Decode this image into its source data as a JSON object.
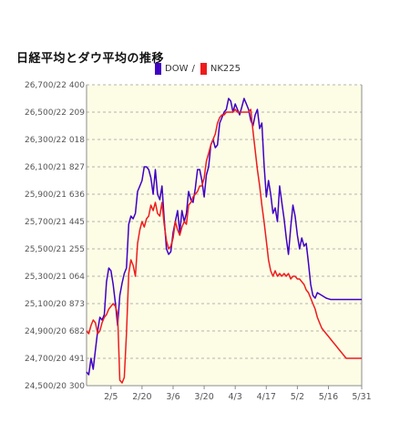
{
  "chart_data": {
    "type": "line",
    "title": "日経平均とダウ平均の推移",
    "y_tick_labels": [
      "24,500/20 300",
      "24,700/20 491",
      "24,900/20 682",
      "25,100/20 873",
      "25,300/21 064",
      "25,500/21 255",
      "25,700/21 445",
      "25,900/21 636",
      "26,100/21 827",
      "26,300/22 018",
      "26,500/22 209",
      "26,700/22 400"
    ],
    "x_tick_labels": [
      "2/5",
      "2/20",
      "3/6",
      "3/20",
      "4/3",
      "4/17",
      "5/2",
      "5/16",
      "5/31"
    ],
    "x_tick_positions": [
      5.5,
      12.5,
      19.5,
      26.5,
      33.5,
      40.5,
      47.5,
      54.5,
      62
    ],
    "xlim": [
      0,
      62
    ],
    "ylim": [
      24500,
      26700
    ],
    "secondary_ylim": [
      20300,
      22400
    ],
    "grid": true,
    "legend_position": "top",
    "series": [
      {
        "name": "DOW",
        "color": "#3f00c4",
        "x": [
          0,
          0.5,
          1,
          1.5,
          2,
          2.5,
          3,
          3.5,
          4,
          4.5,
          5,
          5.5,
          6,
          6.5,
          7,
          7.5,
          8,
          8.5,
          9,
          9.5,
          10,
          10.5,
          11,
          11.5,
          12,
          12.5,
          13,
          13.5,
          14,
          14.5,
          15,
          15.5,
          16,
          16.5,
          17,
          17.5,
          18,
          18.5,
          19,
          19.5,
          20,
          20.5,
          21,
          21.5,
          22,
          22.5,
          23,
          23.5,
          24,
          24.5,
          25,
          25.5,
          26,
          26.5,
          27,
          27.5,
          28,
          28.5,
          29,
          29.5,
          30,
          30.5,
          31,
          31.5,
          32,
          32.5,
          33,
          33.5,
          34,
          34.5,
          35,
          35.5,
          36,
          36.5,
          37,
          37.5,
          38,
          38.5,
          39,
          39.5,
          40,
          40.5,
          41,
          41.5,
          42,
          42.5,
          43,
          43.5,
          44,
          44.5,
          45,
          45.5,
          46,
          46.5,
          47,
          47.5,
          48,
          48.5,
          49,
          49.5,
          50,
          50.5,
          51,
          51.5,
          52,
          52.5,
          53,
          53.5,
          54,
          54.5,
          55,
          55.5,
          56,
          56.5,
          57,
          57.5,
          58,
          58.5,
          59,
          59.5,
          60,
          60.5,
          61,
          61.5,
          62
        ],
        "values": [
          24600,
          24580,
          24700,
          24620,
          24760,
          24900,
          25000,
          24980,
          25020,
          25260,
          25360,
          25340,
          25240,
          25100,
          24940,
          25160,
          25250,
          25320,
          25360,
          25680,
          25740,
          25720,
          25760,
          25920,
          25960,
          26000,
          26100,
          26100,
          26080,
          26020,
          25900,
          26080,
          25900,
          25860,
          25960,
          25720,
          25500,
          25460,
          25480,
          25620,
          25700,
          25780,
          25620,
          25780,
          25700,
          25760,
          25920,
          25860,
          25840,
          25940,
          26080,
          26080,
          26000,
          25880,
          26040,
          26100,
          26260,
          26300,
          26240,
          26260,
          26420,
          26460,
          26500,
          26520,
          26600,
          26580,
          26500,
          26560,
          26520,
          26480,
          26540,
          26600,
          26560,
          26520,
          26440,
          26400,
          26480,
          26520,
          26380,
          26420,
          26120,
          25880,
          26000,
          25900,
          25760,
          25800,
          25700,
          25960,
          25840,
          25720,
          25580,
          25460,
          25660,
          25820,
          25740,
          25600,
          25500,
          25580,
          25520,
          25540,
          25400,
          25240,
          25160,
          25140,
          25180,
          25170,
          25160,
          25150,
          25140,
          25135,
          25130,
          25130,
          25130,
          25130,
          25130,
          25130,
          25130,
          25130,
          25130,
          25130,
          25130,
          25130,
          25130,
          25130,
          25130
        ]
      },
      {
        "name": "NK225",
        "color": "#ee1c1c",
        "x": [
          0,
          0.5,
          1,
          1.5,
          2,
          2.5,
          3,
          3.5,
          4,
          4.5,
          5,
          5.5,
          6,
          6.5,
          7,
          7.5,
          8,
          8.5,
          9,
          9.5,
          10,
          10.5,
          11,
          11.5,
          12,
          12.5,
          13,
          13.5,
          14,
          14.5,
          15,
          15.5,
          16,
          16.5,
          17,
          17.5,
          18,
          18.5,
          19,
          19.5,
          20,
          20.5,
          21,
          21.5,
          22,
          22.5,
          23,
          23.5,
          24,
          24.5,
          25,
          25.5,
          26,
          26.5,
          27,
          27.5,
          28,
          28.5,
          29,
          29.5,
          30,
          30.5,
          31,
          31.5,
          32,
          32.5,
          33,
          33.5,
          34,
          34.5,
          35,
          35.5,
          36,
          36.5,
          37,
          37.5,
          38,
          38.5,
          39,
          39.5,
          40,
          40.5,
          41,
          41.5,
          42,
          42.5,
          43,
          43.5,
          44,
          44.5,
          45,
          45.5,
          46,
          46.5,
          47,
          47.5,
          48,
          48.5,
          49,
          49.5,
          50,
          50.5,
          51,
          51.5,
          52,
          52.5,
          53,
          53.5,
          54,
          54.5,
          55,
          55.5,
          56,
          56.5,
          57,
          57.5,
          58,
          58.5,
          59,
          59.5,
          60,
          60.5,
          61,
          61.5,
          62
        ],
        "values": [
          24900,
          24880,
          24940,
          24980,
          24960,
          24880,
          24900,
          24960,
          25000,
          25020,
          25060,
          25080,
          25100,
          25080,
          25020,
          24540,
          24520,
          24560,
          24880,
          25320,
          25420,
          25380,
          25300,
          25540,
          25640,
          25700,
          25660,
          25720,
          25740,
          25820,
          25780,
          25840,
          25760,
          25740,
          25840,
          25680,
          25560,
          25500,
          25520,
          25580,
          25700,
          25640,
          25600,
          25660,
          25700,
          25680,
          25820,
          25840,
          25880,
          25900,
          25920,
          25960,
          25960,
          26020,
          26140,
          26200,
          26260,
          26300,
          26340,
          26420,
          26460,
          26480,
          26480,
          26500,
          26500,
          26500,
          26500,
          26520,
          26500,
          26500,
          26500,
          26500,
          26500,
          26500,
          26520,
          26360,
          26220,
          26080,
          25960,
          25820,
          25700,
          25560,
          25420,
          25340,
          25300,
          25340,
          25300,
          25320,
          25300,
          25320,
          25300,
          25320,
          25280,
          25300,
          25300,
          25280,
          25280,
          25260,
          25240,
          25200,
          25180,
          25140,
          25100,
          25060,
          25000,
          24960,
          24920,
          24900,
          24880,
          24860,
          24840,
          24820,
          24800,
          24780,
          24760,
          24740,
          24720,
          24700,
          24700,
          24700,
          24700,
          24700,
          24700,
          24700,
          24700
        ]
      }
    ]
  },
  "legend": {
    "dow_label": "DOW",
    "separator": "/",
    "nk_label": "NK225"
  }
}
